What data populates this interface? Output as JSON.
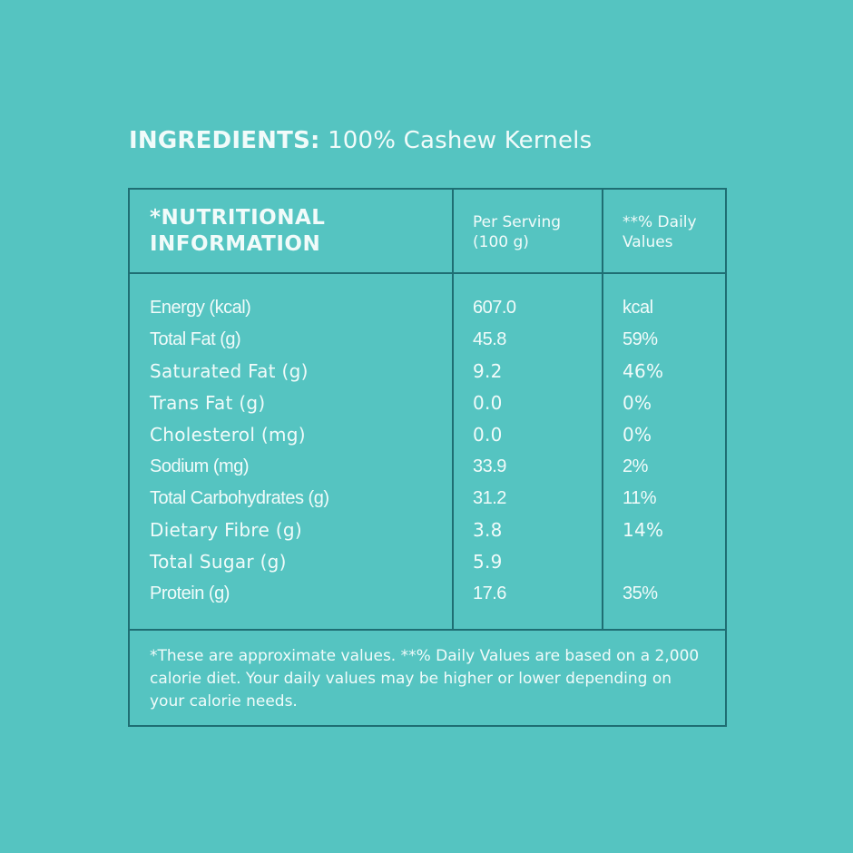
{
  "ingredients": {
    "label": "INGREDIENTS:",
    "value": "100% Cashew Kernels"
  },
  "table": {
    "header": {
      "title_line1": "*NUTRITIONAL",
      "title_line2": "INFORMATION",
      "per_serving_line1": "Per Serving",
      "per_serving_line2": "(100 g)",
      "daily_line1": "**% Daily",
      "daily_line2": "Values"
    },
    "rows": [
      {
        "nutrient": "Energy (kcal)",
        "per_serving": "607.0",
        "daily_value": "kcal"
      },
      {
        "nutrient": "Total Fat (g)",
        "per_serving": "45.8",
        "daily_value": "59%"
      },
      {
        "nutrient": "Saturated Fat (g)",
        "per_serving": "9.2",
        "daily_value": "46%"
      },
      {
        "nutrient": "Trans Fat (g)",
        "per_serving": "0.0",
        "daily_value": "0%"
      },
      {
        "nutrient": "Cholesterol (mg)",
        "per_serving": "0.0",
        "daily_value": "0%"
      },
      {
        "nutrient": "Sodium (mg)",
        "per_serving": "33.9",
        "daily_value": "2%"
      },
      {
        "nutrient": "Total Carbohydrates (g)",
        "per_serving": "31.2",
        "daily_value": "11%"
      },
      {
        "nutrient": "Dietary Fibre (g)",
        "per_serving": "3.8",
        "daily_value": "14%"
      },
      {
        "nutrient": "Total Sugar (g)",
        "per_serving": "5.9",
        "daily_value": ""
      },
      {
        "nutrient": "Protein (g)",
        "per_serving": "17.6",
        "daily_value": "35%"
      }
    ],
    "footnote": "*These are approximate values. **% Daily Values are based on a 2,000 calorie diet. Your daily values may be higher or lower depending on your calorie needs."
  },
  "colors": {
    "background": "#55c4c1",
    "border": "#1f6e73",
    "text": "#f1fbfa"
  }
}
